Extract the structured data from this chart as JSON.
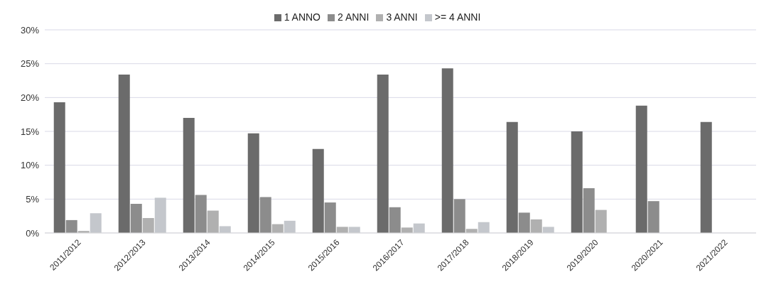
{
  "chart_data": {
    "type": "bar",
    "categories": [
      "2011/2012",
      "2012/2013",
      "2013/2014",
      "2014/2015",
      "2015/2016",
      "2016/2017",
      "2017/2018",
      "2018/2019",
      "2019/2020",
      "2020/2021",
      "2021/2022"
    ],
    "series": [
      {
        "name": "1 ANNO",
        "color": "#6b6b6b",
        "values": [
          19.3,
          23.4,
          17.0,
          14.7,
          12.4,
          23.4,
          24.3,
          16.4,
          15.0,
          18.8,
          16.4
        ]
      },
      {
        "name": "2 ANNI",
        "color": "#8c8c8c",
        "values": [
          1.9,
          4.3,
          5.6,
          5.3,
          4.5,
          3.8,
          5.0,
          3.0,
          6.6,
          4.7,
          null
        ]
      },
      {
        "name": "3 ANNI",
        "color": "#b0b0b0",
        "values": [
          0.3,
          2.2,
          3.3,
          1.3,
          0.9,
          0.8,
          0.6,
          2.0,
          3.4,
          null,
          null
        ]
      },
      {
        "name": ">= 4 ANNI",
        "color": "#c4c7cc",
        "values": [
          2.9,
          5.2,
          1.0,
          1.8,
          0.9,
          1.4,
          1.6,
          0.9,
          null,
          null,
          null
        ]
      }
    ],
    "ylim": [
      0,
      30
    ],
    "yticks": [
      {
        "value": 0,
        "label": "0%"
      },
      {
        "value": 5,
        "label": "5%"
      },
      {
        "value": 10,
        "label": "10%"
      },
      {
        "value": 15,
        "label": "15%"
      },
      {
        "value": 20,
        "label": "20%"
      },
      {
        "value": 25,
        "label": "25%"
      },
      {
        "value": 30,
        "label": "30%"
      }
    ],
    "grid": "y",
    "legend": "top"
  }
}
